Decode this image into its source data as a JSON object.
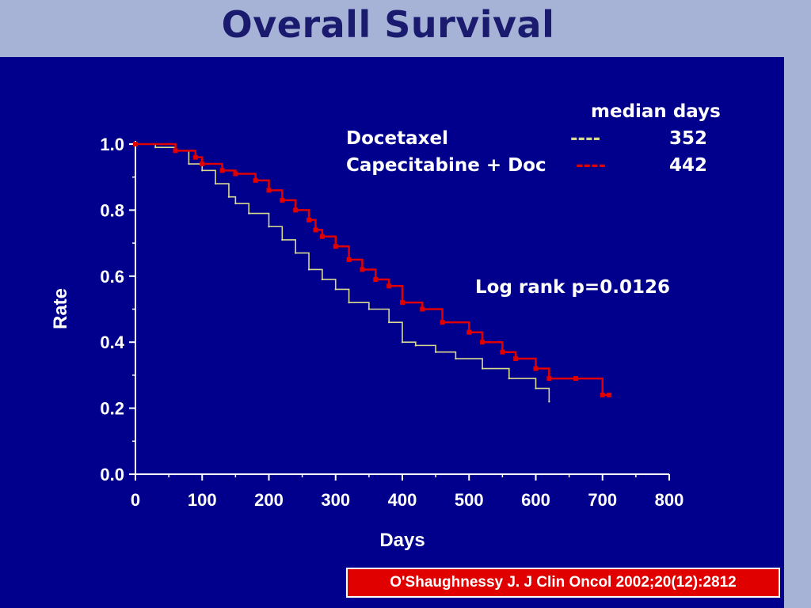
{
  "slide": {
    "title": "Overall Survival",
    "citation": "O'Shaughnessy J. J Clin Oncol 2002;20(12):2812"
  },
  "legend": {
    "header": "median days",
    "rows": [
      {
        "name": "Docetaxel",
        "dash": "----",
        "median": "352"
      },
      {
        "name": "Capecitabine + Doc",
        "dash": "----",
        "median": "442"
      }
    ]
  },
  "annotation": "Log rank p=0.0126",
  "colors": {
    "background": "#00008c",
    "docetaxel": "#d8d890",
    "capecitabine_doc": "#e00000",
    "axis": "#ffffff"
  },
  "chart_data": {
    "type": "line",
    "title": "Overall Survival",
    "xlabel": "Days",
    "ylabel": "Rate",
    "xlim": [
      0,
      800
    ],
    "ylim": [
      0,
      1.0
    ],
    "xticks": [
      "0",
      "100",
      "200",
      "300",
      "400",
      "500",
      "600",
      "700",
      "800"
    ],
    "yticks": [
      "0.0",
      "0.2",
      "0.4",
      "0.6",
      "0.8",
      "1.0"
    ],
    "series": [
      {
        "name": "Docetaxel",
        "x": [
          0,
          30,
          60,
          80,
          100,
          120,
          140,
          150,
          170,
          200,
          220,
          240,
          260,
          280,
          300,
          320,
          350,
          380,
          400,
          420,
          450,
          480,
          520,
          560,
          600,
          620
        ],
        "y": [
          1.0,
          0.99,
          0.98,
          0.94,
          0.92,
          0.88,
          0.84,
          0.82,
          0.79,
          0.75,
          0.71,
          0.67,
          0.62,
          0.59,
          0.56,
          0.52,
          0.5,
          0.46,
          0.4,
          0.39,
          0.37,
          0.35,
          0.32,
          0.29,
          0.26,
          0.22
        ]
      },
      {
        "name": "Capecitabine + Doc",
        "x": [
          0,
          60,
          90,
          100,
          130,
          150,
          180,
          200,
          220,
          240,
          260,
          270,
          280,
          300,
          320,
          340,
          360,
          380,
          400,
          430,
          460,
          500,
          520,
          550,
          570,
          600,
          620,
          660,
          700,
          710
        ],
        "y": [
          1.0,
          0.98,
          0.96,
          0.94,
          0.92,
          0.91,
          0.89,
          0.86,
          0.83,
          0.8,
          0.77,
          0.74,
          0.72,
          0.69,
          0.65,
          0.62,
          0.59,
          0.57,
          0.52,
          0.5,
          0.46,
          0.43,
          0.4,
          0.37,
          0.35,
          0.32,
          0.29,
          0.29,
          0.24,
          0.24
        ]
      }
    ]
  }
}
